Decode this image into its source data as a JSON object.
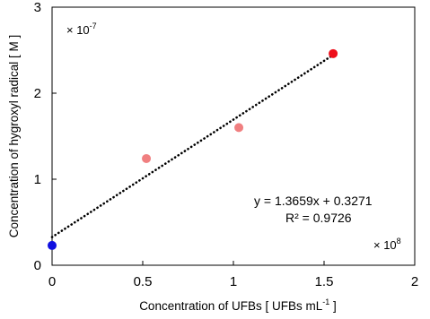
{
  "chart_data": {
    "type": "scatter",
    "xlabel": "Concentration  of UFBs [ UFBs mL",
    "xlabel_sup": "-1",
    "xlabel_tail": " ]",
    "ylabel": "Concentration of hygroxyl radical [ M ]",
    "x_multiplier": {
      "base": "× 10",
      "exp": "8"
    },
    "y_multiplier": {
      "base": "× 10",
      "exp": "-7"
    },
    "xlim": [
      0,
      2
    ],
    "ylim": [
      0,
      3
    ],
    "x_ticks": [
      0,
      0.5,
      1,
      1.5,
      2
    ],
    "x_tick_labels": [
      "0",
      "0.5",
      "1",
      "1.5",
      "2"
    ],
    "y_ticks": [
      0,
      1,
      2,
      3
    ],
    "y_tick_labels": [
      "0",
      "1",
      "2",
      "3"
    ],
    "grid": false,
    "series": [
      {
        "points": [
          {
            "x": 0,
            "y": 0.23,
            "color": "#1010e0"
          },
          {
            "x": 0.52,
            "y": 1.24,
            "color": "#f07f80"
          },
          {
            "x": 1.03,
            "y": 1.6,
            "color": "#f07f80"
          },
          {
            "x": 1.55,
            "y": 2.46,
            "color": "#ee0e1a"
          }
        ]
      }
    ],
    "trendline": {
      "slope": 1.3659,
      "intercept": 0.3271,
      "x_range": [
        0,
        1.55
      ],
      "style": "dotted",
      "equation": "y = 1.3659x + 0.3271",
      "r_squared": "R² = 0.9726"
    }
  }
}
